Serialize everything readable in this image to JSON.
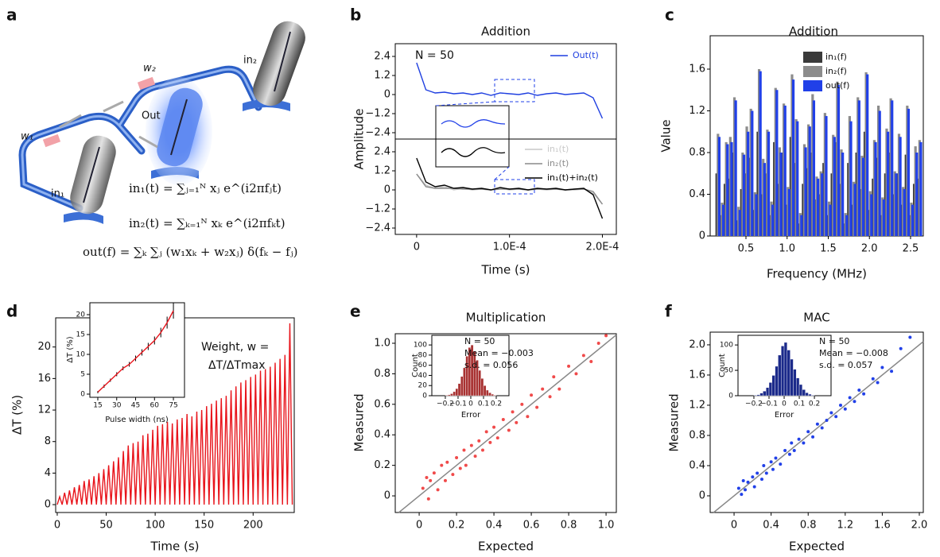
{
  "panel_labels": [
    "a",
    "b",
    "c",
    "d",
    "e",
    "f"
  ],
  "diagram": {
    "w1": "w₁",
    "w2": "w₂",
    "out": "Out",
    "in1": "in₁",
    "in2": "in₂",
    "eq1": "in₁(t) = ∑ⱼ₌₁ᴺ xⱼ e^(i2πfⱼt)",
    "eq2": "in₂(t) = ∑ₖ₌₁ᴺ xₖ e^(i2πfₖt)",
    "eq3": "out(f) = ∑ₖ ∑ⱼ (w₁xₖ + w₂xⱼ) δ(fₖ − fⱼ)"
  },
  "chart_data": [
    {
      "type": "line",
      "title": "Addition",
      "ylabel": "Amplitude",
      "annotations": [
        "N = 50"
      ],
      "legend": "upper right",
      "x": [
        0,
        1e-05,
        2e-05,
        3e-05,
        4e-05,
        5e-05,
        6e-05,
        7e-05,
        8e-05,
        9e-05,
        0.0001,
        0.00011,
        0.00012,
        0.00013,
        0.00014,
        0.00015,
        0.00016,
        0.00017,
        0.00018,
        0.00019,
        0.0002
      ],
      "series": [
        {
          "name": "Out(t)",
          "color": "#1f3fe0",
          "values": [
            2.0,
            0.3,
            0.1,
            0.15,
            0.05,
            0.1,
            0,
            0.1,
            -0.05,
            0.1,
            0.05,
            0,
            0.1,
            -0.05,
            0.05,
            0.1,
            0,
            0.05,
            0.1,
            -0.2,
            -1.5
          ]
        }
      ],
      "xlim": [
        -2.3e-05,
        0.000215
      ],
      "ylim": [
        -2.8,
        3.2
      ],
      "yticks": [
        {
          "value": -2.4,
          "label": "−2.4"
        },
        {
          "value": -1.2,
          "label": "−1.2"
        },
        0,
        1.2,
        2.4
      ]
    },
    {
      "type": "line",
      "xlabel": "Time (s)",
      "legend": "upper right",
      "x": [
        0,
        1e-05,
        2e-05,
        3e-05,
        4e-05,
        5e-05,
        6e-05,
        7e-05,
        8e-05,
        9e-05,
        0.0001,
        0.00011,
        0.00012,
        0.00013,
        0.00014,
        0.00015,
        0.00016,
        0.00017,
        0.00018,
        0.00019,
        0.0002
      ],
      "series": [
        {
          "name": "in₁(t)",
          "color": "#c8c8c8",
          "values": [
            1.0,
            0.3,
            0.1,
            0.2,
            0,
            0.1,
            0,
            0.05,
            0,
            0.1,
            0,
            0.05,
            0,
            0.05,
            0,
            0.05,
            0,
            0,
            0.05,
            -0.2,
            -0.9
          ]
        },
        {
          "name": "in₂(t)",
          "color": "#8a8a8a",
          "values": [
            1.0,
            0.2,
            0.1,
            0.1,
            0.1,
            0.05,
            0.05,
            0.05,
            0,
            0.05,
            0.05,
            0.05,
            0,
            0.05,
            0.05,
            0.05,
            0,
            0.05,
            0.05,
            -0.1,
            -0.9
          ]
        },
        {
          "name": "in₁(t)+in₂(t)",
          "color": "#000000",
          "values": [
            2.0,
            0.5,
            0.2,
            0.3,
            0.1,
            0.15,
            0.05,
            0.1,
            0,
            0.15,
            0.05,
            0.1,
            0,
            0.1,
            0.05,
            0.1,
            0,
            0.05,
            0.1,
            -0.3,
            -1.8
          ]
        }
      ],
      "xlim": [
        -2.3e-05,
        0.000215
      ],
      "ylim": [
        -2.8,
        3.2
      ],
      "xticks": [
        0,
        {
          "value": 0.0001,
          "label": "1.0E-4"
        },
        {
          "value": 0.0002,
          "label": "2.0E-4"
        }
      ],
      "yticks": [
        {
          "value": -2.4,
          "label": "−2.4"
        },
        {
          "value": -1.2,
          "label": "−1.2"
        },
        0,
        1.2,
        2.4
      ]
    },
    {
      "type": "bar",
      "title": "Addition",
      "xlabel": "Frequency (MHz)",
      "ylabel": "Value",
      "legend": "upper center",
      "x": [
        0.16,
        0.21,
        0.26,
        0.31,
        0.36,
        0.41,
        0.46,
        0.51,
        0.56,
        0.61,
        0.66,
        0.71,
        0.76,
        0.81,
        0.86,
        0.91,
        0.96,
        1.01,
        1.06,
        1.11,
        1.16,
        1.21,
        1.26,
        1.31,
        1.36,
        1.41,
        1.46,
        1.51,
        1.56,
        1.61,
        1.66,
        1.71,
        1.76,
        1.81,
        1.86,
        1.91,
        1.96,
        2.01,
        2.06,
        2.11,
        2.16,
        2.21,
        2.26,
        2.31,
        2.36,
        2.41,
        2.46,
        2.51,
        2.56,
        2.61
      ],
      "series": [
        {
          "name": "in₁(f)",
          "color": "#3a3a3a",
          "values": [
            0.6,
            0.2,
            0.5,
            0.55,
            0.8,
            0.15,
            0.45,
            0.6,
            0.75,
            0.25,
            1.0,
            0.4,
            0.6,
            0.2,
            0.9,
            0.5,
            0.8,
            0.3,
            0.95,
            0.7,
            0.12,
            0.5,
            0.65,
            0.8,
            0.35,
            0.4,
            0.7,
            0.2,
            0.6,
            0.9,
            0.5,
            0.12,
            0.7,
            0.3,
            0.8,
            0.45,
            1.0,
            0.25,
            0.55,
            0.75,
            0.2,
            0.6,
            0.8,
            0.4,
            0.6,
            0.3,
            0.78,
            0.2,
            0.5,
            0.55
          ]
        },
        {
          "name": "in₂(f)",
          "color": "#8c8c8c",
          "values": [
            0.98,
            0.32,
            0.9,
            0.95,
            1.33,
            0.28,
            0.8,
            1.05,
            1.22,
            0.42,
            1.6,
            0.74,
            1.02,
            0.33,
            1.42,
            0.85,
            1.27,
            0.47,
            1.55,
            1.12,
            0.22,
            0.88,
            1.07,
            1.36,
            0.57,
            0.62,
            1.18,
            0.33,
            0.97,
            1.48,
            0.83,
            0.22,
            1.15,
            0.52,
            1.33,
            0.77,
            1.57,
            0.43,
            0.92,
            1.25,
            0.37,
            1.03,
            1.32,
            0.62,
            0.98,
            0.47,
            1.25,
            0.32,
            0.86,
            0.92
          ]
        },
        {
          "name": "out(f)",
          "color": "#2140e8",
          "values": [
            0.95,
            0.3,
            0.88,
            0.9,
            1.3,
            0.25,
            0.78,
            1.0,
            1.2,
            0.4,
            1.58,
            0.7,
            1.0,
            0.3,
            1.4,
            0.8,
            1.25,
            0.45,
            1.5,
            1.1,
            0.2,
            0.85,
            1.05,
            1.3,
            0.55,
            0.6,
            1.15,
            0.3,
            0.95,
            1.45,
            0.8,
            0.2,
            1.1,
            0.5,
            1.3,
            0.75,
            1.55,
            0.4,
            0.9,
            1.2,
            0.35,
            1.0,
            1.3,
            0.6,
            0.95,
            0.45,
            1.22,
            0.3,
            0.8,
            0.9
          ]
        }
      ],
      "xlim": [
        0.065,
        2.655
      ],
      "ylim": [
        0,
        1.92
      ],
      "xticks": [
        0.5,
        {
          "value": 1,
          "label": "1.0"
        },
        1.5,
        {
          "value": 2,
          "label": "2.0"
        },
        2.5
      ],
      "yticks": [
        0,
        0.4,
        0.8,
        1.2,
        1.6
      ]
    },
    {
      "type": "line",
      "xlabel": "Time (s)",
      "ylabel": "ΔT (%)",
      "annotations": [
        "Weight, w =",
        "ΔT/ΔTmax"
      ],
      "x": [
        0,
        2.5,
        5,
        7.5,
        10,
        12.5,
        15,
        17.5,
        20,
        22.5,
        25,
        27.5,
        30,
        32.5,
        35,
        37.5,
        40,
        42.5,
        45,
        47.5,
        50,
        52.5,
        55,
        57.5,
        60,
        62.5,
        65,
        67.5,
        70,
        72.5,
        75,
        77.5,
        80,
        82.5,
        85,
        87.5,
        90,
        92.5,
        95,
        97.5,
        100,
        102.5,
        105,
        107.5,
        110,
        112.5,
        115,
        117.5,
        120,
        122.5,
        125,
        127.5,
        130,
        132.5,
        135,
        137.5,
        140,
        142.5,
        145,
        147.5,
        150,
        152.5,
        155,
        157.5,
        160,
        162.5,
        165,
        167.5,
        170,
        172.5,
        175,
        177.5,
        180,
        182.5,
        185,
        187.5,
        190,
        192.5,
        195,
        197.5,
        200,
        202.5,
        205,
        207.5,
        210,
        212.5,
        215,
        217.5,
        220,
        222.5,
        225,
        227.5,
        230,
        232.5,
        235,
        237.5,
        240
      ],
      "series": [
        {
          "color": "#e8141b",
          "values": [
            0,
            1,
            0,
            1.5,
            0,
            1.8,
            0,
            2.2,
            0,
            2.5,
            0,
            3,
            0,
            3.2,
            0,
            3.6,
            0,
            4,
            0,
            4.5,
            0,
            5,
            0,
            5.5,
            0,
            6,
            0,
            6.8,
            0,
            7.5,
            0,
            7.8,
            0,
            8,
            0,
            8.8,
            0,
            9,
            0,
            9.5,
            0,
            10,
            0,
            10.2,
            0,
            10.5,
            0,
            10.3,
            0,
            10.8,
            0,
            11,
            0,
            11.5,
            0,
            11.2,
            0,
            11.8,
            0,
            12,
            0,
            12.5,
            0,
            12.8,
            0,
            13.2,
            0,
            13.5,
            0,
            13.8,
            0,
            14.5,
            0,
            15,
            0,
            15.5,
            0,
            15.8,
            0,
            16.2,
            0,
            16.5,
            0,
            17,
            0,
            17.2,
            0,
            17.5,
            0,
            18,
            0,
            18.5,
            0,
            19,
            0,
            23,
            0
          ]
        }
      ],
      "xlim": [
        -1.6,
        242
      ],
      "ylim": [
        -1,
        23.7
      ],
      "xticks": [
        0,
        50,
        100,
        150,
        200
      ],
      "yticks": [
        0,
        4,
        8,
        12,
        16,
        20
      ]
    },
    {
      "type": "line",
      "xlabel": "Pulse width (ns)",
      "ylabel": "ΔT (%)",
      "x": [
        15,
        20,
        25,
        30,
        35,
        40,
        45,
        50,
        55,
        60,
        65,
        70,
        75
      ],
      "series": [
        {
          "color": "#e8141b",
          "values": [
            0.5,
            2,
            3.5,
            5,
            6.5,
            7.5,
            9,
            10.5,
            12,
            13.5,
            15.5,
            18,
            21
          ],
          "errors": [
            0.3,
            0.4,
            0.4,
            0.5,
            0.5,
            0.6,
            0.7,
            0.8,
            0.9,
            1,
            1.2,
            1.5,
            2
          ]
        }
      ],
      "xlim": [
        8.7,
        83.8
      ],
      "ylim": [
        -0.8,
        23
      ],
      "xticks": [
        15,
        30,
        45,
        60,
        75
      ],
      "yticks": [
        0,
        5,
        10,
        15,
        20
      ]
    },
    {
      "type": "scatter",
      "title": "Multiplication",
      "xlabel": "Expected",
      "ylabel": "Measured",
      "color": "#f04a4a",
      "x": [
        0.02,
        0.04,
        0.05,
        0.06,
        0.08,
        0.1,
        0.12,
        0.14,
        0.15,
        0.18,
        0.2,
        0.22,
        0.24,
        0.25,
        0.28,
        0.3,
        0.32,
        0.34,
        0.36,
        0.38,
        0.4,
        0.42,
        0.45,
        0.48,
        0.5,
        0.52,
        0.55,
        0.58,
        0.6,
        0.63,
        0.66,
        0.7,
        0.72,
        0.75,
        0.8,
        0.84,
        0.88,
        0.92,
        0.96,
        1.0
      ],
      "values": [
        0.05,
        0.12,
        -0.02,
        0.1,
        0.15,
        0.04,
        0.2,
        0.1,
        0.22,
        0.14,
        0.25,
        0.18,
        0.3,
        0.2,
        0.33,
        0.26,
        0.36,
        0.3,
        0.42,
        0.35,
        0.45,
        0.38,
        0.5,
        0.43,
        0.55,
        0.48,
        0.6,
        0.52,
        0.66,
        0.58,
        0.7,
        0.65,
        0.78,
        0.7,
        0.85,
        0.8,
        0.92,
        0.88,
        1.0,
        1.05
      ],
      "xlim": [
        -0.128,
        1.055
      ],
      "ylim": [
        -0.109,
        1.0625
      ],
      "xticks": [
        0,
        0.2,
        0.4,
        0.6,
        0.8,
        {
          "value": 1,
          "label": "1.0"
        }
      ],
      "yticks": [
        0,
        0.2,
        0.4,
        0.6,
        0.8,
        {
          "value": 1,
          "label": "1.0"
        }
      ]
    },
    {
      "type": "histogram",
      "xlabel": "Error",
      "ylabel": "Count",
      "color": "#a83232",
      "annotations": [
        "N = 50",
        "Mean = −0.003",
        "s.d. = 0.056"
      ],
      "bins": [
        -0.2,
        -0.18,
        -0.16,
        -0.14,
        -0.12,
        -0.1,
        -0.08,
        -0.06,
        -0.04,
        -0.02,
        0,
        0.02,
        0.04,
        0.06,
        0.08,
        0.1,
        0.12,
        0.14,
        0.16,
        0.18,
        0.2
      ],
      "values": [
        1,
        2,
        4,
        8,
        14,
        24,
        38,
        55,
        78,
        95,
        100,
        88,
        70,
        50,
        34,
        20,
        11,
        6,
        3,
        1
      ],
      "xlim": [
        -0.306,
        0.3
      ],
      "ylim": [
        0,
        119
      ],
      "xticks": [
        {
          "value": -0.2,
          "label": "−0.2"
        },
        {
          "value": -0.1,
          "label": "−0.1"
        },
        0,
        0.1,
        0.2
      ],
      "yticks": [
        0,
        20,
        40,
        60,
        80,
        100
      ]
    },
    {
      "type": "scatter",
      "title": "MAC",
      "xlabel": "Expected",
      "ylabel": "Measured",
      "color": "#2140e8",
      "x": [
        0.05,
        0.08,
        0.1,
        0.12,
        0.15,
        0.2,
        0.22,
        0.25,
        0.3,
        0.32,
        0.35,
        0.4,
        0.42,
        0.45,
        0.5,
        0.55,
        0.6,
        0.62,
        0.65,
        0.7,
        0.75,
        0.8,
        0.85,
        0.9,
        0.95,
        1.0,
        1.05,
        1.1,
        1.15,
        1.2,
        1.25,
        1.3,
        1.35,
        1.4,
        1.5,
        1.55,
        1.6,
        1.7,
        1.8,
        1.9
      ],
      "values": [
        0.1,
        0.02,
        0.2,
        0.08,
        0.18,
        0.25,
        0.12,
        0.3,
        0.22,
        0.4,
        0.3,
        0.45,
        0.35,
        0.5,
        0.42,
        0.6,
        0.55,
        0.7,
        0.6,
        0.75,
        0.7,
        0.85,
        0.78,
        0.95,
        0.9,
        1.0,
        1.1,
        1.05,
        1.2,
        1.15,
        1.3,
        1.25,
        1.4,
        1.35,
        1.55,
        1.5,
        1.7,
        1.65,
        1.95,
        2.1
      ],
      "xlim": [
        -0.258,
        2.043
      ],
      "ylim": [
        -0.221,
        2.168
      ],
      "xticks": [
        0,
        0.4,
        0.8,
        1.2,
        1.6,
        {
          "value": 2,
          "label": "2.0"
        }
      ],
      "yticks": [
        0,
        0.4,
        0.8,
        1.2,
        1.6,
        {
          "value": 2,
          "label": "2.0"
        }
      ]
    },
    {
      "type": "histogram",
      "xlabel": "Error",
      "ylabel": "Count",
      "color": "#1b2a8a",
      "annotations": [
        "N = 50",
        "Mean = −0.008",
        "s.d. = 0.057"
      ],
      "bins": [
        -0.2,
        -0.18,
        -0.16,
        -0.14,
        -0.12,
        -0.1,
        -0.08,
        -0.06,
        -0.04,
        -0.02,
        0,
        0.02,
        0.04,
        0.06,
        0.08,
        0.1,
        0.12,
        0.14,
        0.16,
        0.18,
        0.2
      ],
      "values": [
        1,
        2,
        5,
        9,
        16,
        26,
        40,
        58,
        80,
        98,
        105,
        90,
        72,
        52,
        35,
        22,
        12,
        6,
        3,
        1
      ],
      "xlim": [
        -0.305,
        0.31
      ],
      "ylim": [
        0,
        119
      ],
      "xticks": [
        {
          "value": -0.2,
          "label": "−0.2"
        },
        {
          "value": -0.1,
          "label": "−0.1"
        },
        0,
        0.1,
        0.2
      ],
      "yticks": [
        0,
        50,
        100
      ]
    }
  ]
}
